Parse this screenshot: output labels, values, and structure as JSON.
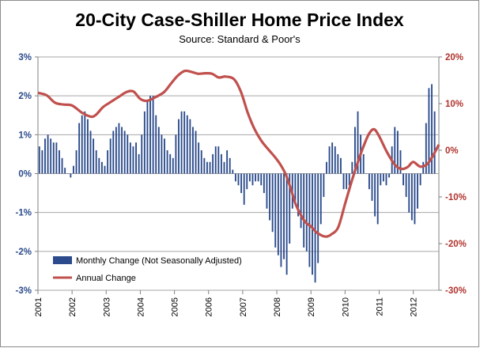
{
  "chart_data": {
    "type": "bar+line",
    "title": "20-City Case-Shiller Home Price Index",
    "subtitle": "Source: Standard & Poor's",
    "x_ticks": [
      "2001",
      "2002",
      "2003",
      "2004",
      "2005",
      "2006",
      "2007",
      "2008",
      "2009",
      "2010",
      "2011",
      "2012"
    ],
    "x_range": [
      2001.0,
      2012.75
    ],
    "y_left": {
      "ticks": [
        "3%",
        "2%",
        "1%",
        "0%",
        "-1%",
        "-2%",
        "-3%"
      ],
      "range": [
        -3,
        3
      ],
      "color": "#2b4b8c"
    },
    "y_right": {
      "ticks": [
        "20%",
        "10%",
        "0%",
        "-10%",
        "-20%",
        "-30%"
      ],
      "range": [
        -30,
        20
      ],
      "color": "#b0332e"
    },
    "grid": true,
    "legend_placement": "bottom-left",
    "series": [
      {
        "name": "Monthly Change (Not Seasonally Adjusted)",
        "type": "bar",
        "axis": "left",
        "color": "#2b4b8c",
        "start": "2001-01",
        "values": [
          0.7,
          0.6,
          0.9,
          1.0,
          0.9,
          0.8,
          0.8,
          0.6,
          0.4,
          0.15,
          0.0,
          -0.1,
          0.2,
          0.6,
          1.3,
          1.5,
          1.6,
          1.4,
          1.1,
          0.9,
          0.6,
          0.4,
          0.3,
          0.2,
          0.6,
          0.9,
          1.1,
          1.2,
          1.3,
          1.2,
          1.1,
          1.0,
          0.8,
          0.7,
          0.8,
          0.5,
          1.0,
          1.6,
          1.9,
          2.0,
          2.0,
          1.5,
          1.2,
          1.0,
          0.9,
          0.6,
          0.5,
          0.4,
          1.0,
          1.4,
          1.6,
          1.6,
          1.5,
          1.4,
          1.2,
          1.1,
          0.8,
          0.6,
          0.4,
          0.3,
          0.3,
          0.5,
          0.7,
          0.7,
          0.5,
          0.3,
          0.6,
          0.4,
          0.1,
          -0.2,
          -0.3,
          -0.5,
          -0.8,
          -0.4,
          -0.2,
          -0.3,
          -0.2,
          -0.2,
          -0.3,
          -0.5,
          -0.9,
          -1.2,
          -1.5,
          -1.9,
          -2.1,
          -2.4,
          -2.2,
          -2.6,
          -1.8,
          -0.9,
          -0.7,
          -1.1,
          -1.4,
          -1.9,
          -2.0,
          -2.4,
          -2.6,
          -2.8,
          -2.3,
          -1.3,
          -0.6,
          0.3,
          0.7,
          0.8,
          0.7,
          0.5,
          0.4,
          -0.4,
          -0.4,
          -0.3,
          0.3,
          1.2,
          1.6,
          1.0,
          0.5,
          0.0,
          -0.4,
          -0.7,
          -1.1,
          -1.3,
          -0.3,
          -0.2,
          -0.3,
          -0.1,
          0.7,
          1.2,
          1.1,
          0.6,
          -0.3,
          -0.6,
          -1.0,
          -1.2,
          -1.3,
          -0.9,
          -0.3,
          0.3,
          1.3,
          2.2,
          2.3,
          1.6
        ]
      },
      {
        "name": "Annual Change",
        "type": "line",
        "axis": "right",
        "color": "#c0504d",
        "points": [
          [
            2001.0,
            12.3
          ],
          [
            2001.25,
            11.8
          ],
          [
            2001.5,
            10.2
          ],
          [
            2001.75,
            9.8
          ],
          [
            2002.0,
            9.6
          ],
          [
            2002.3,
            8.0
          ],
          [
            2002.55,
            7.2
          ],
          [
            2002.7,
            7.6
          ],
          [
            2002.9,
            9.2
          ],
          [
            2003.1,
            10.2
          ],
          [
            2003.4,
            11.6
          ],
          [
            2003.6,
            12.5
          ],
          [
            2003.8,
            12.6
          ],
          [
            2004.0,
            11.0
          ],
          [
            2004.2,
            10.6
          ],
          [
            2004.45,
            11.4
          ],
          [
            2004.7,
            12.5
          ],
          [
            2004.9,
            14.3
          ],
          [
            2005.1,
            16.0
          ],
          [
            2005.3,
            17.0
          ],
          [
            2005.5,
            16.8
          ],
          [
            2005.7,
            16.4
          ],
          [
            2005.9,
            16.5
          ],
          [
            2006.1,
            16.4
          ],
          [
            2006.3,
            15.6
          ],
          [
            2006.5,
            15.8
          ],
          [
            2006.75,
            15.2
          ],
          [
            2006.95,
            12.5
          ],
          [
            2007.15,
            8.0
          ],
          [
            2007.35,
            4.5
          ],
          [
            2007.55,
            2.0
          ],
          [
            2007.75,
            0.2
          ],
          [
            2007.95,
            -1.5
          ],
          [
            2008.1,
            -3.0
          ],
          [
            2008.25,
            -5.0
          ],
          [
            2008.4,
            -8.0
          ],
          [
            2008.55,
            -11.5
          ],
          [
            2008.7,
            -13.8
          ],
          [
            2008.85,
            -15.5
          ],
          [
            2009.0,
            -16.3
          ],
          [
            2009.15,
            -17.5
          ],
          [
            2009.3,
            -18.2
          ],
          [
            2009.45,
            -18.5
          ],
          [
            2009.6,
            -18.0
          ],
          [
            2009.8,
            -16.5
          ],
          [
            2010.0,
            -11.5
          ],
          [
            2010.2,
            -6.5
          ],
          [
            2010.4,
            -2.0
          ],
          [
            2010.55,
            1.0
          ],
          [
            2010.7,
            3.5
          ],
          [
            2010.85,
            4.5
          ],
          [
            2011.0,
            3.0
          ],
          [
            2011.2,
            0.0
          ],
          [
            2011.4,
            -2.5
          ],
          [
            2011.55,
            -3.7
          ],
          [
            2011.7,
            -4.0
          ],
          [
            2011.85,
            -3.5
          ],
          [
            2012.0,
            -2.5
          ],
          [
            2012.2,
            -3.5
          ],
          [
            2012.4,
            -3.0
          ],
          [
            2012.55,
            -1.5
          ],
          [
            2012.7,
            0.5
          ],
          [
            2012.75,
            1.2
          ]
        ]
      }
    ]
  }
}
